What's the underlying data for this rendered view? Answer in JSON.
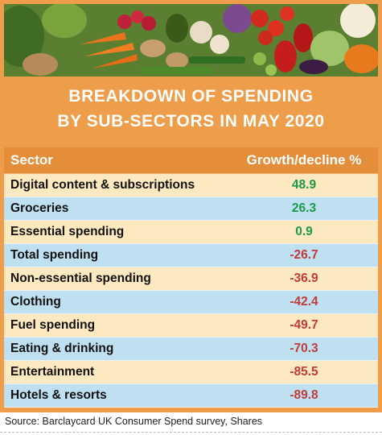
{
  "title_line1": "BREAKDOWN OF SPENDING",
  "title_line2": "BY SUB-SECTORS IN MAY 2020",
  "source": "Source: Barclaycard UK Consumer Spend survey, Shares",
  "colors": {
    "frame": "#ee9d4a",
    "header": "#e58e3a",
    "row_light": "#fde9c0",
    "row_blue": "#bfe0f1",
    "positive": "#1a9a4a",
    "negative": "#c23b3b"
  },
  "banner_icon": "vegetables-photo",
  "chart_data": {
    "type": "table",
    "columns": [
      "Sector",
      "Growth/decline %"
    ],
    "rows": [
      {
        "sector": "Digital content & subscriptions",
        "value": "48.9"
      },
      {
        "sector": "Groceries",
        "value": "26.3"
      },
      {
        "sector": "Essential spending",
        "value": "0.9"
      },
      {
        "sector": "Total spending",
        "value": "-26.7"
      },
      {
        "sector": "Non-essential spending",
        "value": "-36.9"
      },
      {
        "sector": "Clothing",
        "value": "-42.4"
      },
      {
        "sector": "Fuel spending",
        "value": "-49.7"
      },
      {
        "sector": "Eating & drinking",
        "value": "-70.3"
      },
      {
        "sector": "Entertainment",
        "value": "-85.5"
      },
      {
        "sector": "Hotels & resorts",
        "value": "-89.8"
      }
    ]
  }
}
